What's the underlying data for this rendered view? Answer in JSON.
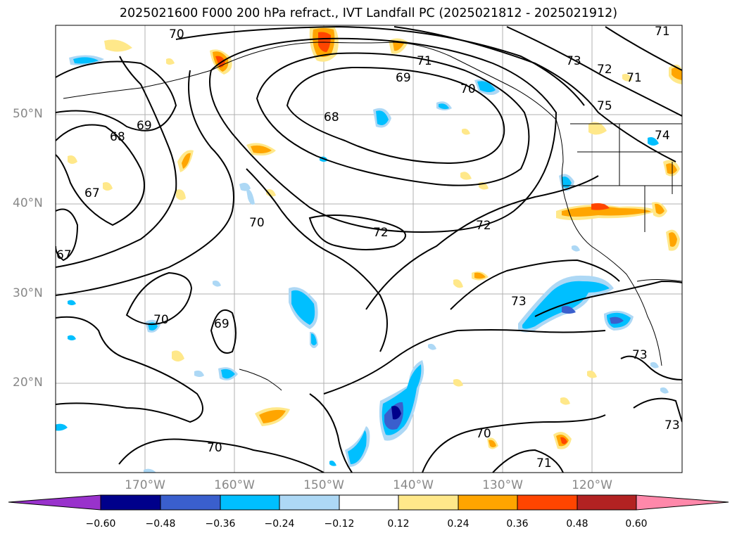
{
  "title": "2025021600 F000 200 hPa refract., IVT Landfall PC (2025021812 - 2025021912)",
  "map": {
    "lat_labels": [
      "50°N",
      "40°N",
      "30°N",
      "20°N"
    ],
    "lon_labels": [
      "170°W",
      "160°W",
      "150°W",
      "140°W",
      "130°W",
      "120°W"
    ],
    "contour_labels": [
      "70",
      "71",
      "71",
      "69",
      "70",
      "73",
      "72",
      "71",
      "75",
      "74",
      "68",
      "69",
      "68",
      "67",
      "67",
      "70",
      "72",
      "72",
      "70",
      "69",
      "73",
      "73",
      "70",
      "71",
      "73"
    ]
  },
  "colorbar": {
    "colors": [
      "#9932cc",
      "#00008b",
      "#3a5fcd",
      "#00bfff",
      "#add8f5",
      "#ffffff",
      "#ffe88a",
      "#ffa500",
      "#ff4500",
      "#b22222",
      "#ff88aa"
    ],
    "ticks": [
      "−0.60",
      "−0.48",
      "−0.36",
      "−0.24",
      "−0.12",
      "0.12",
      "0.24",
      "0.36",
      "0.48",
      "0.60"
    ]
  }
}
